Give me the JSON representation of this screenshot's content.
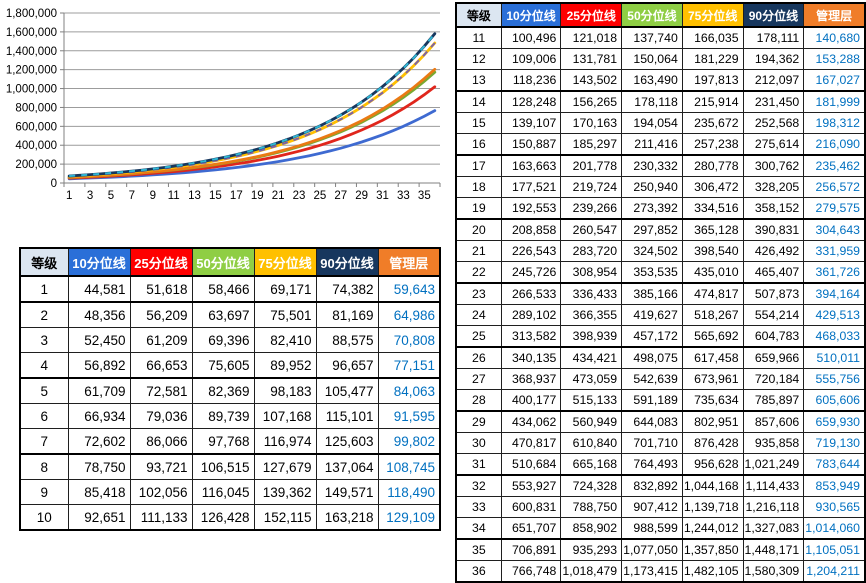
{
  "table": {
    "level_header": "等级",
    "columns": [
      {
        "label": "等级",
        "bg": "#dce6f1",
        "fg": "#000000"
      },
      {
        "label": "10分位线",
        "bg": "#2a6fd8",
        "fg": "#ffffff"
      },
      {
        "label": "25分位线",
        "bg": "#fe0000",
        "fg": "#ffffff"
      },
      {
        "label": "50分位线",
        "bg": "#8fce44",
        "fg": "#ffffff"
      },
      {
        "label": "75分位线",
        "bg": "#ffc000",
        "fg": "#ffffff"
      },
      {
        "label": "90分位线",
        "bg": "#17375e",
        "fg": "#ffffff"
      },
      {
        "label": "管理层",
        "bg": "#f07d28",
        "fg": "#ffffff"
      }
    ],
    "management_text_color": "#0070c0",
    "left_levels": [
      1,
      10
    ],
    "right_levels": [
      11,
      36
    ]
  },
  "chart_data": {
    "type": "line",
    "title": "",
    "xlabel": "",
    "ylabel": "",
    "x_range": [
      1,
      36
    ],
    "x_tick_labels": [
      "1",
      "3",
      "5",
      "7",
      "9",
      "11",
      "13",
      "15",
      "17",
      "19",
      "21",
      "23",
      "25",
      "27",
      "29",
      "31",
      "33",
      "35"
    ],
    "ylim": [
      0,
      1800000
    ],
    "ytick_step": 200000,
    "grid": true,
    "legend_position": "none",
    "series": [
      {
        "name": "10分位线",
        "color": "#3e6ad1",
        "values": [
          44581,
          48356,
          52450,
          56892,
          61709,
          66934,
          72602,
          78750,
          85418,
          92651,
          100496,
          109006,
          118236,
          128248,
          139107,
          150887,
          163663,
          177521,
          192553,
          208858,
          226543,
          245726,
          266533,
          289102,
          313582,
          340135,
          368937,
          400177,
          434062,
          470817,
          510684,
          553927,
          600831,
          651707,
          706891,
          766748
        ]
      },
      {
        "name": "25分位线",
        "color": "#e0261c",
        "values": [
          51618,
          56209,
          61209,
          66653,
          72581,
          79036,
          86066,
          93721,
          102056,
          111133,
          121018,
          131781,
          143502,
          156265,
          170163,
          185297,
          201778,
          219724,
          239266,
          260547,
          283720,
          308954,
          336433,
          366355,
          398939,
          434421,
          473059,
          515133,
          560949,
          610840,
          665168,
          724328,
          788750,
          858902,
          935293,
          1018479
        ]
      },
      {
        "name": "50分位线",
        "color": "#7aa831",
        "values": [
          58466,
          63697,
          69396,
          75605,
          82369,
          89739,
          97768,
          106515,
          116045,
          126428,
          137740,
          150064,
          163490,
          178118,
          194054,
          211416,
          230332,
          250940,
          273392,
          297852,
          324502,
          353535,
          385166,
          419627,
          457172,
          498075,
          542639,
          591189,
          644083,
          701710,
          764493,
          832892,
          907412,
          988599,
          1077050,
          1173415
        ]
      },
      {
        "name": "75分位线",
        "color": "#ffc000",
        "dash_color": "#7d62a8",
        "values": [
          69171,
          75501,
          82410,
          89952,
          98183,
          107168,
          116974,
          127679,
          139362,
          152115,
          166035,
          181229,
          197813,
          215914,
          235672,
          257238,
          280778,
          306472,
          334516,
          365128,
          398540,
          435010,
          474817,
          518267,
          565692,
          617458,
          673961,
          735634,
          802951,
          876428,
          956628,
          1044168,
          1139718,
          1244012,
          1357850,
          1482105
        ]
      },
      {
        "name": "90分位线",
        "color": "#17375e",
        "dash_color": "#2fb6d4",
        "values": [
          74382,
          81169,
          88575,
          96657,
          105477,
          115101,
          125603,
          137064,
          149571,
          163218,
          178111,
          194362,
          212097,
          231450,
          252568,
          275614,
          300762,
          328205,
          358152,
          390831,
          426492,
          465407,
          507873,
          554214,
          604783,
          659966,
          720184,
          785897,
          857606,
          935858,
          1021249,
          1114433,
          1216118,
          1327083,
          1448171,
          1580309
        ]
      },
      {
        "name": "管理层",
        "color": "#ea7a14",
        "values": [
          59643,
          64986,
          70808,
          77151,
          84063,
          91595,
          99802,
          108745,
          118490,
          129109,
          140680,
          153288,
          167027,
          181999,
          198312,
          216090,
          235462,
          256572,
          279575,
          304643,
          331959,
          361726,
          394164,
          429513,
          468033,
          510011,
          555756,
          605606,
          659930,
          719130,
          783644,
          853949,
          930565,
          1014060,
          1105051,
          1204211
        ]
      }
    ]
  }
}
